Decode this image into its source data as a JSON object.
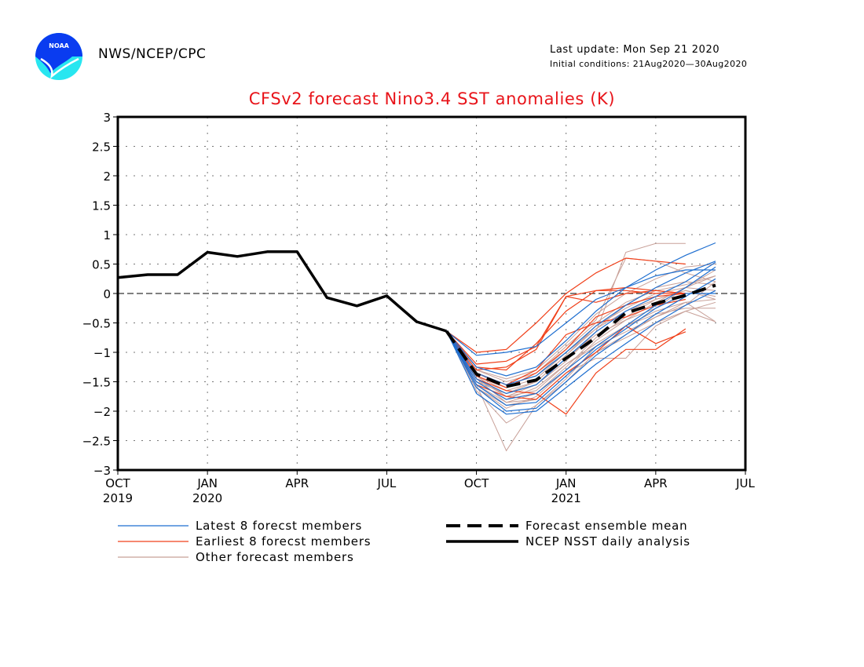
{
  "header": {
    "org": "NWS/NCEP/CPC",
    "last_update": "Last update: Mon Sep 21 2020",
    "initial_conditions": "Initial conditions: 21Aug2020—30Aug2020",
    "logo_text": "NOAA"
  },
  "colors": {
    "title": "#e8141a",
    "latest": "#1f6fd0",
    "earliest": "#f0401a",
    "other": "#c8a098",
    "observed": "#000000",
    "mean": "#000000"
  },
  "chart_data": {
    "type": "line",
    "title": "CFSv2 forecast Nino3.4 SST anomalies (K)",
    "xlabel": "",
    "ylabel": "",
    "ylim": [
      -3,
      3
    ],
    "yticks": [
      3,
      2.5,
      2,
      1.5,
      1,
      0.5,
      0,
      -0.5,
      -1,
      -1.5,
      -2,
      -2.5,
      -3
    ],
    "ytick_labels": [
      "3",
      "2.5",
      "2",
      "1.5",
      "1",
      "0.5",
      "0",
      "−0.5",
      "−1",
      "−1.5",
      "−2",
      "−2.5",
      "−3"
    ],
    "x_unit": "months since Oct 2019",
    "xlim": [
      0,
      21
    ],
    "xticks": [
      {
        "x": 0,
        "label": "OCT",
        "year": "2019"
      },
      {
        "x": 3,
        "label": "JAN",
        "year": "2020"
      },
      {
        "x": 6,
        "label": "APR",
        "year": ""
      },
      {
        "x": 9,
        "label": "JUL",
        "year": ""
      },
      {
        "x": 12,
        "label": "OCT",
        "year": ""
      },
      {
        "x": 15,
        "label": "JAN",
        "year": "2021"
      },
      {
        "x": 18,
        "label": "APR",
        "year": ""
      },
      {
        "x": 21,
        "label": "JUL",
        "year": ""
      }
    ],
    "grid": true,
    "zero_line": true,
    "legend": {
      "position": "bottom",
      "entries": [
        {
          "label": "Latest 8 forecst members",
          "style": "latest"
        },
        {
          "label": "Earliest 8 forecst members",
          "style": "earliest"
        },
        {
          "label": "Other forecast members",
          "style": "other"
        },
        {
          "label": "Forecast ensemble mean",
          "style": "mean"
        },
        {
          "label": "NCEP NSST daily analysis",
          "style": "observed"
        }
      ]
    },
    "series": [
      {
        "name": "NCEP NSST daily analysis",
        "style": "observed",
        "x": [
          0,
          1,
          2,
          3,
          4,
          5,
          6,
          7,
          8,
          9,
          10,
          11
        ],
        "values": [
          0.27,
          0.32,
          0.32,
          0.7,
          0.63,
          0.71,
          0.71,
          -0.07,
          -0.21,
          -0.04,
          -0.48,
          -0.64
        ]
      },
      {
        "name": "Forecast ensemble mean",
        "style": "mean",
        "x": [
          11,
          12,
          13,
          14,
          15,
          16,
          17,
          18,
          19,
          20
        ],
        "values": [
          -0.64,
          -1.37,
          -1.58,
          -1.47,
          -1.1,
          -0.75,
          -0.33,
          -0.17,
          -0.03,
          0.14
        ]
      }
    ],
    "members": {
      "start_x": 11,
      "start_value": -0.64,
      "latest": [
        [
          -1.05,
          -1.0,
          -0.9,
          -0.5,
          -0.1,
          0.1,
          0.4,
          0.65,
          0.86
        ],
        [
          -1.35,
          -1.55,
          -1.4,
          -1.0,
          -0.55,
          -0.2,
          0.1,
          0.35,
          0.55
        ],
        [
          -1.5,
          -1.8,
          -1.7,
          -1.3,
          -0.9,
          -0.55,
          -0.2,
          0.1,
          0.45
        ],
        [
          -1.6,
          -2.0,
          -1.95,
          -1.5,
          -1.05,
          -0.7,
          -0.35,
          -0.05,
          0.25
        ],
        [
          -1.45,
          -1.7,
          -1.55,
          -1.1,
          -0.65,
          -0.3,
          -0.05,
          0.2,
          0.53
        ],
        [
          -1.7,
          -2.05,
          -2.0,
          -1.6,
          -1.2,
          -0.85,
          -0.5,
          -0.2,
          0.05
        ],
        [
          -1.25,
          -1.4,
          -1.25,
          -0.8,
          -0.3,
          0.1,
          0.3,
          0.4,
          0.4
        ],
        [
          -1.55,
          -1.9,
          -1.85,
          -1.4,
          -0.95,
          -0.6,
          -0.25,
          0.0,
          0.0
        ]
      ],
      "earliest": [
        [
          -1.0,
          -0.95,
          -0.5,
          0.0,
          0.35,
          0.6,
          0.55,
          0.5
        ],
        [
          -1.25,
          -1.3,
          -0.85,
          -0.3,
          0.05,
          0.1,
          0.05,
          0.0
        ],
        [
          -1.4,
          -1.6,
          -1.35,
          -0.95,
          -0.4,
          -0.2,
          -0.05,
          0.0
        ],
        [
          -1.3,
          -1.25,
          -0.95,
          -0.05,
          0.05,
          0.05,
          0.0,
          0.0
        ],
        [
          -1.55,
          -1.75,
          -1.8,
          -1.35,
          -1.0,
          -0.55,
          -0.85,
          -0.65
        ],
        [
          -1.45,
          -1.65,
          -1.7,
          -2.05,
          -1.35,
          -0.95,
          -0.95,
          -0.6
        ],
        [
          -1.2,
          -1.15,
          -0.9,
          -0.05,
          -0.15,
          0.0,
          0.05,
          0.0
        ],
        [
          -1.35,
          -1.55,
          -1.3,
          -0.7,
          -0.5,
          -0.4,
          -0.2,
          -0.1
        ]
      ],
      "other": [
        [
          -1.4,
          -1.75,
          -1.55,
          -1.15,
          -0.65,
          0.7,
          0.85,
          0.85
        ],
        [
          -1.55,
          -2.67,
          -1.9,
          -1.45,
          -0.9,
          -0.55,
          -0.3,
          -0.15,
          -0.1
        ],
        [
          -1.65,
          -2.2,
          -1.9,
          -1.5,
          -1.0,
          -0.7,
          -0.4,
          -0.15,
          -0.48
        ],
        [
          -1.3,
          -1.5,
          -1.35,
          -0.9,
          -0.45,
          0.6,
          0.55,
          0.35,
          0.2
        ],
        [
          -1.45,
          -1.85,
          -1.8,
          -1.35,
          -1.1,
          -1.1,
          -0.55,
          -0.3,
          -0.48
        ],
        [
          -1.5,
          -1.7,
          -1.55,
          -1.1,
          -0.7,
          -0.45,
          -0.25,
          0.1,
          0.3
        ],
        [
          -1.35,
          -1.6,
          -1.45,
          -1.0,
          -0.6,
          -0.3,
          -0.1,
          0.05,
          -0.1
        ],
        [
          -1.6,
          -1.95,
          -1.75,
          -1.3,
          -0.8,
          -0.45,
          -0.15,
          0.1,
          0.4
        ],
        [
          -1.4,
          -1.65,
          -1.5,
          -1.05,
          -0.6,
          -0.2,
          0.1,
          0.2,
          0.15
        ],
        [
          -1.5,
          -1.8,
          -1.6,
          -1.2,
          -0.85,
          -0.55,
          -0.35,
          -0.25,
          -0.25
        ],
        [
          -1.3,
          -1.45,
          -1.3,
          -0.85,
          -0.35,
          0.0,
          0.25,
          0.45,
          0.5
        ],
        [
          -1.55,
          -1.85,
          -1.7,
          -1.25,
          -0.75,
          -0.4,
          -0.1,
          0.05,
          -0.05
        ],
        [
          -1.45,
          -1.75,
          -1.65,
          -1.2,
          -0.9,
          -0.65,
          -0.4,
          -0.2,
          0.2
        ],
        [
          -1.35,
          -1.55,
          -1.4,
          -0.95,
          -0.5,
          -0.15,
          0.05,
          0.15,
          0.3
        ],
        [
          -1.6,
          -1.9,
          -1.8,
          -1.35,
          -1.0,
          -0.75,
          -0.5,
          -0.3,
          -0.15
        ],
        [
          -1.5,
          -1.7,
          -1.5,
          -1.05,
          -0.55,
          -0.25,
          0.0,
          0.1,
          0.05
        ]
      ]
    }
  }
}
